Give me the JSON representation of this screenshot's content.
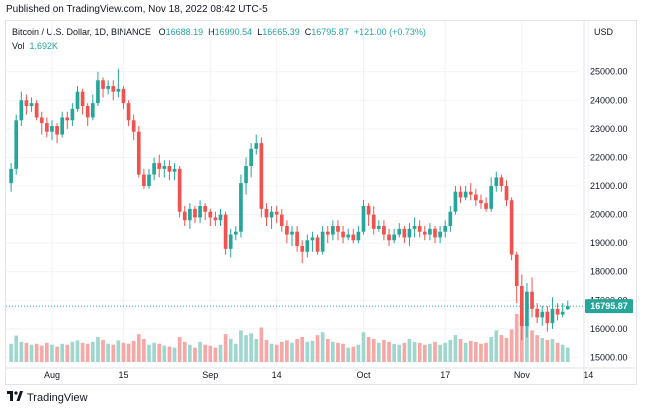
{
  "published": "Published on TradingView.com, Nov 18, 2022 08:42 UTC-5",
  "legend": {
    "symbol": "Bitcoin / U.S. Dollar, 1D, BINANCE",
    "o_label": "O",
    "o": "16688.19",
    "h_label": "H",
    "h": "16990.54",
    "l_label": "L",
    "l": "16665.39",
    "c_label": "C",
    "c": "16795.87",
    "change": "+121.00 (+0.73%)",
    "vol_label": "Vol",
    "vol": "1.692K"
  },
  "currency": "USD",
  "brand": "TradingView",
  "colors": {
    "up": "#26a69a",
    "down": "#ef5350",
    "up_vol": "#9fd7cf",
    "down_vol": "#f5a8a6",
    "grid": "#f0f3fa",
    "price_line": "#26a69a"
  },
  "chart_data": {
    "type": "candlestick",
    "title": "Bitcoin / U.S. Dollar, 1D, BINANCE",
    "ylim": [
      14700,
      25900
    ],
    "y_ticks": [
      "25000.00",
      "24000.00",
      "23000.00",
      "22000.00",
      "21000.00",
      "20000.00",
      "19000.00",
      "18000.00",
      "17000.00",
      "16000.00",
      "15000.00"
    ],
    "x_ticks": [
      {
        "label": "Aug",
        "index": 8
      },
      {
        "label": "15",
        "index": 22
      },
      {
        "label": "Sep",
        "index": 39
      },
      {
        "label": "14",
        "index": 52
      },
      {
        "label": "Oct",
        "index": 69
      },
      {
        "label": "17",
        "index": 85
      },
      {
        "label": "Nov",
        "index": 100
      },
      {
        "label": "14",
        "index": 113
      }
    ],
    "last_price": "16795.87",
    "last_price_value": 16795.87,
    "candles": [
      [
        21100,
        21600,
        20800,
        21800
      ],
      [
        21600,
        23300,
        21400,
        23500
      ],
      [
        23300,
        24000,
        23100,
        24300
      ],
      [
        24000,
        23800,
        23500,
        24200
      ],
      [
        23800,
        23900,
        23600,
        24100
      ],
      [
        23900,
        23400,
        23300,
        24000
      ],
      [
        23400,
        23200,
        22800,
        23600
      ],
      [
        23200,
        22900,
        22700,
        23400
      ],
      [
        22900,
        23100,
        22600,
        23300
      ],
      [
        23100,
        22800,
        22500,
        23200
      ],
      [
        22800,
        23400,
        22700,
        23600
      ],
      [
        23400,
        23300,
        23000,
        23600
      ],
      [
        23300,
        23700,
        23100,
        23900
      ],
      [
        23700,
        24300,
        23600,
        24500
      ],
      [
        24300,
        23800,
        23500,
        24400
      ],
      [
        23800,
        23400,
        23100,
        23900
      ],
      [
        23400,
        23900,
        23300,
        24200
      ],
      [
        23900,
        24700,
        23800,
        25000
      ],
      [
        24700,
        24400,
        24100,
        24800
      ],
      [
        24400,
        24500,
        24200,
        24700
      ],
      [
        24500,
        24300,
        24000,
        24700
      ],
      [
        24300,
        24400,
        24100,
        25100
      ],
      [
        24400,
        23900,
        23700,
        24500
      ],
      [
        23900,
        23300,
        23100,
        24000
      ],
      [
        23300,
        22900,
        22600,
        23500
      ],
      [
        22900,
        21400,
        21300,
        23100
      ],
      [
        21400,
        21000,
        20900,
        21600
      ],
      [
        21000,
        21400,
        20900,
        21600
      ],
      [
        21400,
        21800,
        21200,
        22000
      ],
      [
        21800,
        21600,
        21300,
        22100
      ],
      [
        21600,
        21700,
        21300,
        21900
      ],
      [
        21700,
        21500,
        21200,
        21900
      ],
      [
        21500,
        21600,
        21200,
        21800
      ],
      [
        21600,
        20100,
        19900,
        21700
      ],
      [
        20100,
        19800,
        19600,
        20300
      ],
      [
        19800,
        20200,
        19500,
        20400
      ],
      [
        20200,
        19900,
        19700,
        20300
      ],
      [
        19900,
        20300,
        19700,
        20500
      ],
      [
        20300,
        20100,
        19800,
        20400
      ],
      [
        20100,
        19900,
        19600,
        20200
      ],
      [
        19900,
        19800,
        19600,
        20100
      ],
      [
        19800,
        20000,
        19600,
        20200
      ],
      [
        20000,
        18800,
        18600,
        20100
      ],
      [
        18800,
        19300,
        18500,
        19500
      ],
      [
        19300,
        19400,
        19100,
        19600
      ],
      [
        19400,
        21100,
        19200,
        21400
      ],
      [
        21100,
        21700,
        20700,
        22000
      ],
      [
        21700,
        22300,
        21300,
        22500
      ],
      [
        22300,
        22500,
        22100,
        22800
      ],
      [
        22500,
        20200,
        19900,
        22700
      ],
      [
        20200,
        19900,
        19600,
        20400
      ],
      [
        19900,
        20100,
        19500,
        20300
      ],
      [
        20100,
        20000,
        19700,
        20300
      ],
      [
        20000,
        19600,
        19400,
        20200
      ],
      [
        19600,
        19300,
        19000,
        19800
      ],
      [
        19300,
        19400,
        18900,
        19600
      ],
      [
        19400,
        18900,
        18700,
        19600
      ],
      [
        18900,
        18700,
        18300,
        19100
      ],
      [
        18700,
        19100,
        18500,
        19300
      ],
      [
        19100,
        19200,
        18700,
        19400
      ],
      [
        19200,
        18700,
        18600,
        19300
      ],
      [
        18700,
        19400,
        18600,
        19600
      ],
      [
        19400,
        19300,
        19000,
        19600
      ],
      [
        19300,
        19600,
        19100,
        19800
      ],
      [
        19600,
        19400,
        19100,
        19800
      ],
      [
        19400,
        19200,
        19000,
        19600
      ],
      [
        19200,
        19300,
        19100,
        19500
      ],
      [
        19300,
        19100,
        19000,
        19500
      ],
      [
        19100,
        19400,
        19000,
        19600
      ],
      [
        19400,
        20300,
        19300,
        20500
      ],
      [
        20300,
        20000,
        19600,
        20400
      ],
      [
        20000,
        19500,
        19300,
        20300
      ],
      [
        19500,
        19600,
        19400,
        19800
      ],
      [
        19600,
        19300,
        19100,
        19800
      ],
      [
        19300,
        19100,
        18900,
        19500
      ],
      [
        19100,
        19300,
        19000,
        19500
      ],
      [
        19300,
        19500,
        19200,
        19700
      ],
      [
        19500,
        19200,
        19000,
        19600
      ],
      [
        19200,
        19500,
        18900,
        19700
      ],
      [
        19500,
        19600,
        19200,
        19900
      ],
      [
        19600,
        19400,
        19200,
        19800
      ],
      [
        19400,
        19300,
        19100,
        19600
      ],
      [
        19300,
        19500,
        19100,
        19700
      ],
      [
        19500,
        19200,
        19000,
        19600
      ],
      [
        19200,
        19400,
        19000,
        19600
      ],
      [
        19400,
        19600,
        19200,
        19800
      ],
      [
        19600,
        20100,
        19400,
        20300
      ],
      [
        20100,
        20800,
        20000,
        21000
      ],
      [
        20800,
        20600,
        20400,
        21000
      ],
      [
        20600,
        20800,
        20500,
        21000
      ],
      [
        20800,
        20700,
        20500,
        21100
      ],
      [
        20700,
        20500,
        20300,
        20900
      ],
      [
        20500,
        20400,
        20200,
        20700
      ],
      [
        20400,
        20200,
        20100,
        20600
      ],
      [
        20200,
        21000,
        20100,
        21300
      ],
      [
        21000,
        21300,
        20800,
        21500
      ],
      [
        21300,
        21000,
        20800,
        21400
      ],
      [
        21000,
        20500,
        20300,
        21200
      ],
      [
        20500,
        18600,
        18400,
        20600
      ],
      [
        18600,
        17500,
        16900,
        18700
      ],
      [
        17500,
        16100,
        15600,
        17900
      ],
      [
        16100,
        17300,
        15700,
        17600
      ],
      [
        17300,
        16700,
        16400,
        17800
      ],
      [
        16700,
        16400,
        16200,
        16900
      ],
      [
        16400,
        16600,
        16100,
        16800
      ],
      [
        16600,
        16200,
        15900,
        16800
      ],
      [
        16200,
        16700,
        16000,
        17100
      ],
      [
        16700,
        16500,
        16300,
        16900
      ],
      [
        16500,
        16600,
        16400,
        16900
      ],
      [
        16688,
        16796,
        16665,
        16991
      ]
    ],
    "volumes": [
      0.38,
      0.55,
      0.42,
      0.4,
      0.36,
      0.38,
      0.34,
      0.4,
      0.36,
      0.32,
      0.38,
      0.36,
      0.42,
      0.45,
      0.4,
      0.38,
      0.42,
      0.52,
      0.46,
      0.38,
      0.36,
      0.45,
      0.4,
      0.38,
      0.44,
      0.58,
      0.48,
      0.36,
      0.4,
      0.38,
      0.34,
      0.32,
      0.3,
      0.52,
      0.42,
      0.36,
      0.3,
      0.42,
      0.36,
      0.34,
      0.3,
      0.36,
      0.58,
      0.48,
      0.38,
      0.66,
      0.56,
      0.6,
      0.48,
      0.72,
      0.46,
      0.38,
      0.36,
      0.42,
      0.45,
      0.4,
      0.48,
      0.52,
      0.42,
      0.44,
      0.56,
      0.62,
      0.48,
      0.42,
      0.4,
      0.38,
      0.3,
      0.32,
      0.36,
      0.62,
      0.52,
      0.48,
      0.4,
      0.46,
      0.42,
      0.38,
      0.36,
      0.4,
      0.48,
      0.42,
      0.4,
      0.36,
      0.38,
      0.42,
      0.36,
      0.4,
      0.46,
      0.56,
      0.48,
      0.4,
      0.44,
      0.42,
      0.38,
      0.4,
      0.52,
      0.66,
      0.56,
      0.5,
      0.68,
      1.0,
      0.96,
      0.82,
      0.66,
      0.56,
      0.5,
      0.46,
      0.48,
      0.4,
      0.36,
      0.3
    ]
  }
}
